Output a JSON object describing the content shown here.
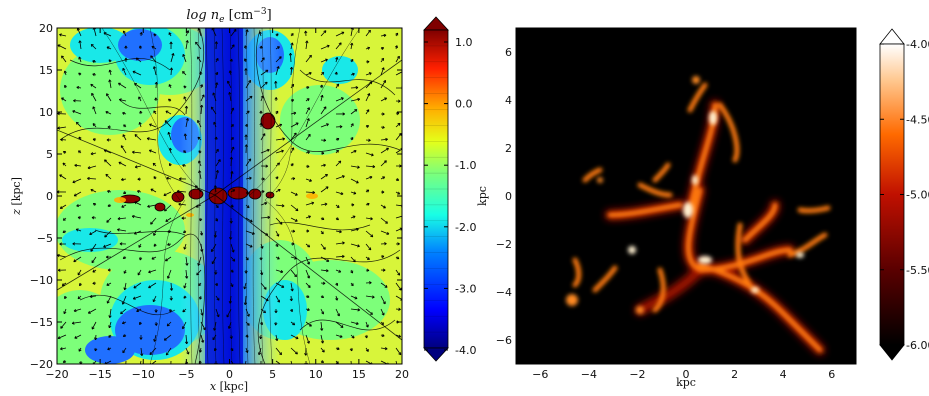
{
  "chart_data": [
    {
      "type": "heatmap",
      "title": "log n_e [cm^-3]",
      "xlabel": "x [kpc]",
      "ylabel": "z [kpc]",
      "xlim": [
        -20,
        20
      ],
      "ylim": [
        -20,
        20
      ],
      "x_ticks": [
        "−20",
        "−15",
        "−10",
        "−5",
        "0",
        "5",
        "10",
        "15",
        "20"
      ],
      "y_ticks": [
        "20",
        "15",
        "10",
        "5",
        "0",
        "−5",
        "−10",
        "−15",
        "−20"
      ],
      "colorbar": {
        "range": [
          -4.0,
          1.0
        ],
        "ticks": [
          "1.0",
          "0.0",
          "-1.0",
          "-2.0",
          "-3.0",
          "-4.0"
        ],
        "colormap": "jet"
      },
      "overlays": [
        "contours",
        "velocity-arrows"
      ]
    },
    {
      "type": "heatmap",
      "title": "",
      "xlabel": "kpc",
      "ylabel": "kpc",
      "xlim": [
        -7,
        7
      ],
      "ylim": [
        -7,
        7
      ],
      "x_ticks": [
        "−6",
        "−4",
        "−2",
        "0",
        "2",
        "4",
        "6"
      ],
      "y_ticks": [
        "6",
        "4",
        "2",
        "0",
        "−2",
        "−4",
        "−6"
      ],
      "colorbar": {
        "range": [
          -6.0,
          -4.0
        ],
        "ticks": [
          "-4.00",
          "-4.50",
          "-5.00",
          "-5.50",
          "-6.00"
        ],
        "colormap": "gist_heat"
      }
    }
  ]
}
